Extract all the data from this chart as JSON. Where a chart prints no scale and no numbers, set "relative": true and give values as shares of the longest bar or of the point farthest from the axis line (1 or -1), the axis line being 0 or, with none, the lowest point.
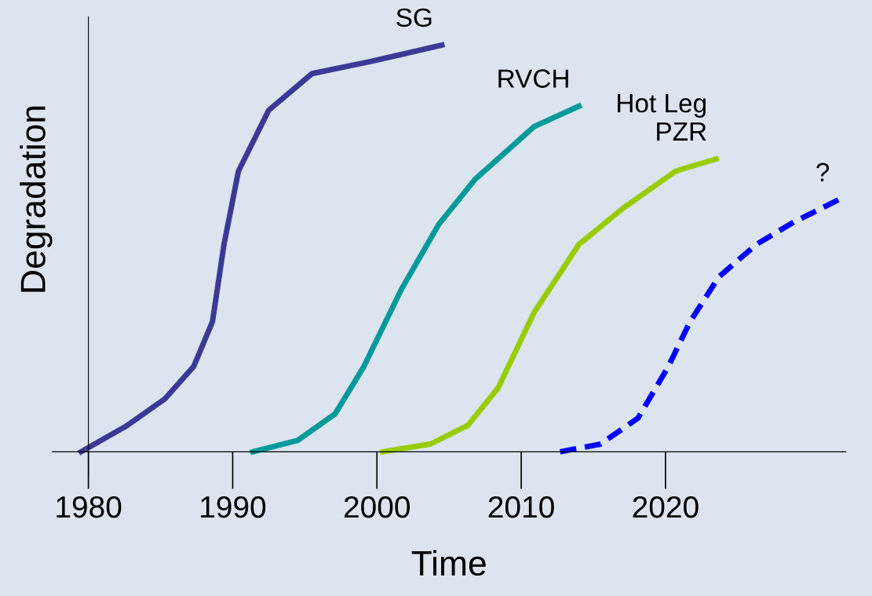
{
  "chart_data": {
    "type": "line",
    "xlabel": "Time",
    "ylabel": "Degradation",
    "relative": true,
    "xlim": [
      1977.5,
      2032.5
    ],
    "xticks": [
      1980,
      1990,
      2000,
      2010,
      2020
    ],
    "legend": false,
    "marker": "none",
    "series": [
      {
        "name": "SG",
        "color": "#3a3a96",
        "line_style": "solid",
        "x": [
          1979.5,
          1982.7,
          1985.3,
          1987.3,
          1988.6,
          1989.4,
          1990.4,
          1992.5,
          1995.5,
          1999.6,
          2004.5
        ],
        "values": [
          0,
          0.065,
          0.13,
          0.21,
          0.32,
          0.51,
          0.69,
          0.84,
          0.93,
          0.96,
          1
        ]
      },
      {
        "name": "RVCH",
        "color": "#00999a",
        "line_style": "solid",
        "x": [
          1991.4,
          1994.5,
          1997.1,
          1999.1,
          2001.7,
          2004.3,
          2006.8,
          2010.9,
          2014.0
        ],
        "values": [
          0,
          0.028,
          0.093,
          0.21,
          0.4,
          0.56,
          0.67,
          0.8,
          0.85
        ]
      },
      {
        "name": "Hot Leg\nPZR",
        "color": "#99cc00",
        "line_style": "solid",
        "x": [
          2000.4,
          2003.7,
          2006.3,
          2008.4,
          2010.9,
          2014.0,
          2017.1,
          2020.7,
          2023.5
        ],
        "values": [
          0,
          0.019,
          0.065,
          0.157,
          0.343,
          0.51,
          0.6,
          0.69,
          0.72
        ]
      },
      {
        "name": "?",
        "color": "#0000ff",
        "line_style": "dashed",
        "x": [
          2012.7,
          2015.5,
          2018.1,
          2020.2,
          2021.7,
          2023.7,
          2026.3,
          2028.9,
          2032.0
        ],
        "values": [
          0,
          0.019,
          0.083,
          0.21,
          0.32,
          0.43,
          0.51,
          0.565,
          0.62
        ]
      }
    ]
  }
}
